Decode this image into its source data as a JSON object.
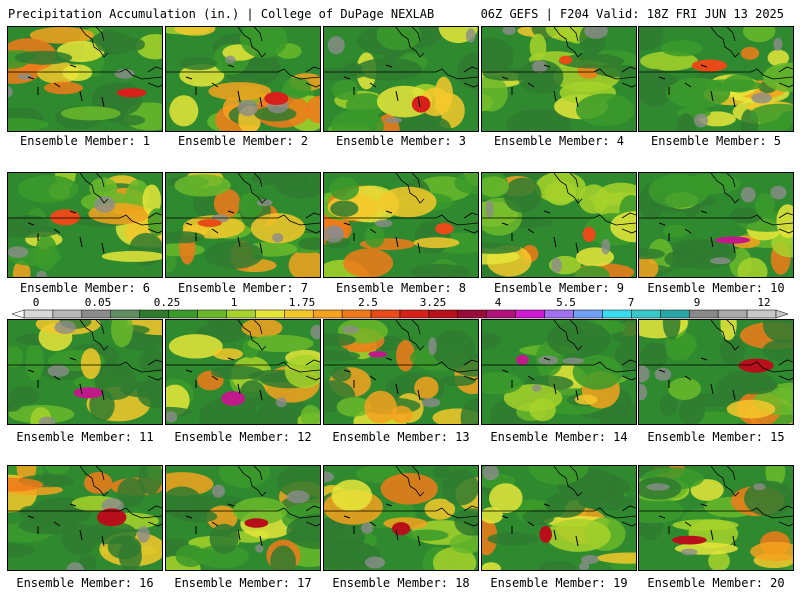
{
  "header": {
    "title_left": "Precipitation Accumulation (in.) | College of DuPage NEXLAB",
    "title_right": "06Z GEFS | F204 Valid: 18Z FRI JUN 13 2025"
  },
  "member_prefix": "Ensemble Member: ",
  "members": [
    {
      "id": "1",
      "label": "Ensemble Member: 1"
    },
    {
      "id": "2",
      "label": "Ensemble Member: 2"
    },
    {
      "id": "3",
      "label": "Ensemble Member: 3"
    },
    {
      "id": "4",
      "label": "Ensemble Member: 4"
    },
    {
      "id": "5",
      "label": "Ensemble Member: 5"
    },
    {
      "id": "6",
      "label": "Ensemble Member: 6"
    },
    {
      "id": "7",
      "label": "Ensemble Member: 7"
    },
    {
      "id": "8",
      "label": "Ensemble Member: 8"
    },
    {
      "id": "9",
      "label": "Ensemble Member: 9"
    },
    {
      "id": "10",
      "label": "Ensemble Member: 10"
    },
    {
      "id": "11",
      "label": "Ensemble Member: 11"
    },
    {
      "id": "12",
      "label": "Ensemble Member: 12"
    },
    {
      "id": "13",
      "label": "Ensemble Member: 13"
    },
    {
      "id": "14",
      "label": "Ensemble Member: 14"
    },
    {
      "id": "15",
      "label": "Ensemble Member: 15"
    },
    {
      "id": "16",
      "label": "Ensemble Member: 16"
    },
    {
      "id": "17",
      "label": "Ensemble Member: 17"
    },
    {
      "id": "18",
      "label": "Ensemble Member: 18"
    },
    {
      "id": "19",
      "label": "Ensemble Member: 19"
    },
    {
      "id": "20",
      "label": "Ensemble Member: 20"
    }
  ],
  "colorbar": {
    "tick_labels": [
      "0",
      "0.05",
      "0.25",
      "1",
      "1.75",
      "2.5",
      "3.25",
      "4",
      "5.5",
      "7",
      "9",
      "12"
    ],
    "colors": [
      "#d8d8d8",
      "#b8b8b8",
      "#8c8c8c",
      "#5f8f5f",
      "#2f7a2f",
      "#3a9a2a",
      "#6ab82a",
      "#a6d22a",
      "#e6e63a",
      "#f5c82a",
      "#f5a21e",
      "#f07a1a",
      "#e84a18",
      "#d8201a",
      "#b8101a",
      "#9a0a3a",
      "#b0127a",
      "#d01ad0",
      "#a070f0",
      "#6fa0f5",
      "#3adcf0",
      "#38c8c8",
      "#2aa8a8",
      "#888888",
      "#aaaaaa",
      "#c8c8c8"
    ]
  }
}
